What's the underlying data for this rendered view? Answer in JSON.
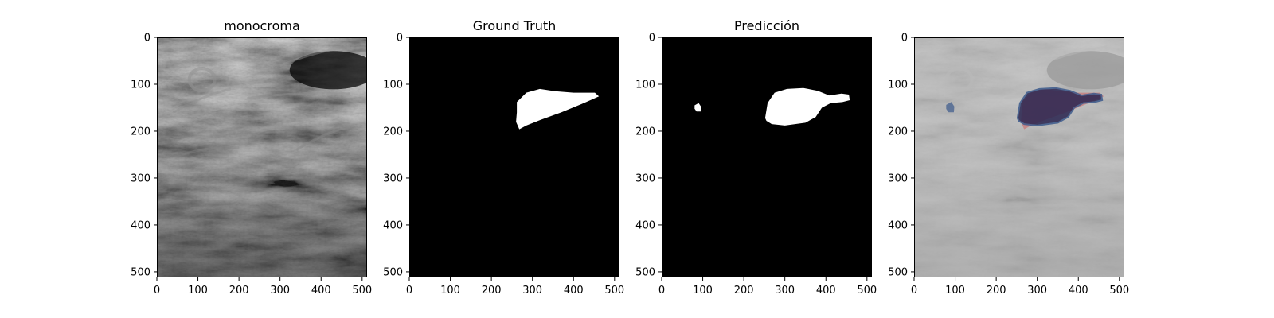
{
  "figure": {
    "panels": [
      {
        "title": "monocroma",
        "kind": "ultrasound"
      },
      {
        "title": "Ground Truth",
        "kind": "ground-truth-mask"
      },
      {
        "title": "Predicción",
        "kind": "prediction-mask"
      },
      {
        "title": "",
        "kind": "overlay"
      }
    ]
  },
  "chart_data": {
    "type": "image-grid",
    "image_extent": [
      0,
      512
    ],
    "x_ticks": [
      0,
      100,
      200,
      300,
      400,
      500
    ],
    "y_ticks": [
      0,
      100,
      200,
      300,
      400,
      500
    ],
    "y_axis_inverted": true,
    "colors": {
      "mask_background": "#000000",
      "mask_foreground": "#ffffff",
      "ultrasound_dark": "#1e1e1e",
      "ultrasound_light": "#9a9a9a",
      "overlay_background": "#c4c4c4",
      "overlay_ground_truth": "#c87878",
      "overlay_prediction": "#2a2550",
      "overlay_prediction_edge": "#3c5a8c"
    },
    "ground_truth_region": [
      [
        262,
        138
      ],
      [
        285,
        118
      ],
      [
        318,
        110
      ],
      [
        355,
        115
      ],
      [
        400,
        118
      ],
      [
        452,
        118
      ],
      [
        462,
        126
      ],
      [
        420,
        142
      ],
      [
        370,
        160
      ],
      [
        320,
        176
      ],
      [
        285,
        188
      ],
      [
        268,
        196
      ],
      [
        260,
        180
      ],
      [
        262,
        160
      ]
    ],
    "prediction_regions": [
      [
        [
          252,
          172
        ],
        [
          258,
          140
        ],
        [
          275,
          118
        ],
        [
          305,
          110
        ],
        [
          345,
          108
        ],
        [
          380,
          114
        ],
        [
          408,
          124
        ],
        [
          438,
          120
        ],
        [
          456,
          122
        ],
        [
          458,
          134
        ],
        [
          440,
          138
        ],
        [
          412,
          140
        ],
        [
          390,
          150
        ],
        [
          375,
          170
        ],
        [
          350,
          182
        ],
        [
          300,
          188
        ],
        [
          268,
          185
        ],
        [
          255,
          178
        ]
      ],
      [
        [
          80,
          145
        ],
        [
          90,
          140
        ],
        [
          96,
          148
        ],
        [
          95,
          158
        ],
        [
          85,
          158
        ],
        [
          80,
          152
        ]
      ]
    ]
  }
}
